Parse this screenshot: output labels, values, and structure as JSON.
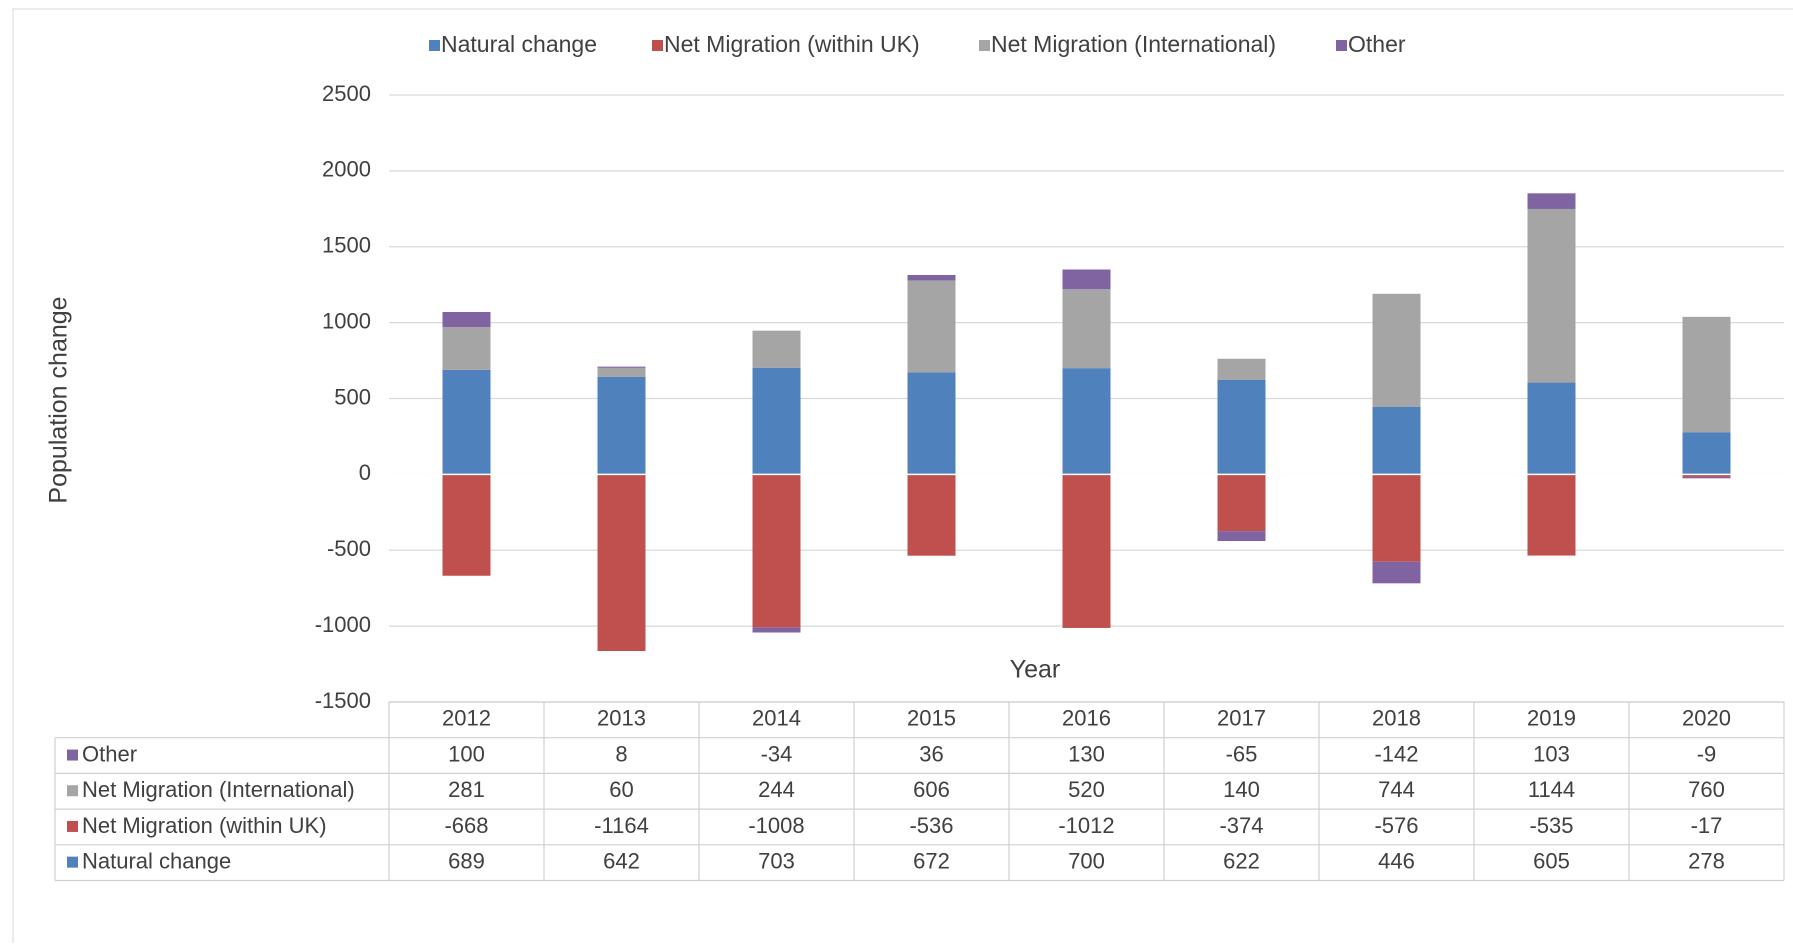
{
  "chart_data": {
    "type": "stacked_bar",
    "x_label": "Year",
    "y_label": "Population change",
    "categories": [
      "2012",
      "2013",
      "2014",
      "2015",
      "2016",
      "2017",
      "2018",
      "2019",
      "2020"
    ],
    "series": [
      {
        "name": "Natural change",
        "color": "#4f81bd",
        "values": [
          689,
          642,
          703,
          672,
          700,
          622,
          446,
          605,
          278
        ]
      },
      {
        "name": "Net Migration (within UK)",
        "color": "#c0504d",
        "values": [
          -668,
          -1164,
          -1008,
          -536,
          -1012,
          -374,
          -576,
          -535,
          -17
        ]
      },
      {
        "name": "Net Migration (International)",
        "color": "#a5a5a5",
        "values": [
          281,
          60,
          244,
          606,
          520,
          140,
          744,
          1144,
          760
        ]
      },
      {
        "name": "Other",
        "color": "#8064a2",
        "values": [
          100,
          8,
          -34,
          36,
          130,
          -65,
          -142,
          103,
          -9
        ]
      }
    ],
    "ylim": [
      -1500,
      2500
    ],
    "yticks": [
      -1500,
      -1000,
      -500,
      0,
      500,
      1000,
      1500,
      2000,
      2500
    ],
    "grid": true,
    "legend": "top"
  }
}
